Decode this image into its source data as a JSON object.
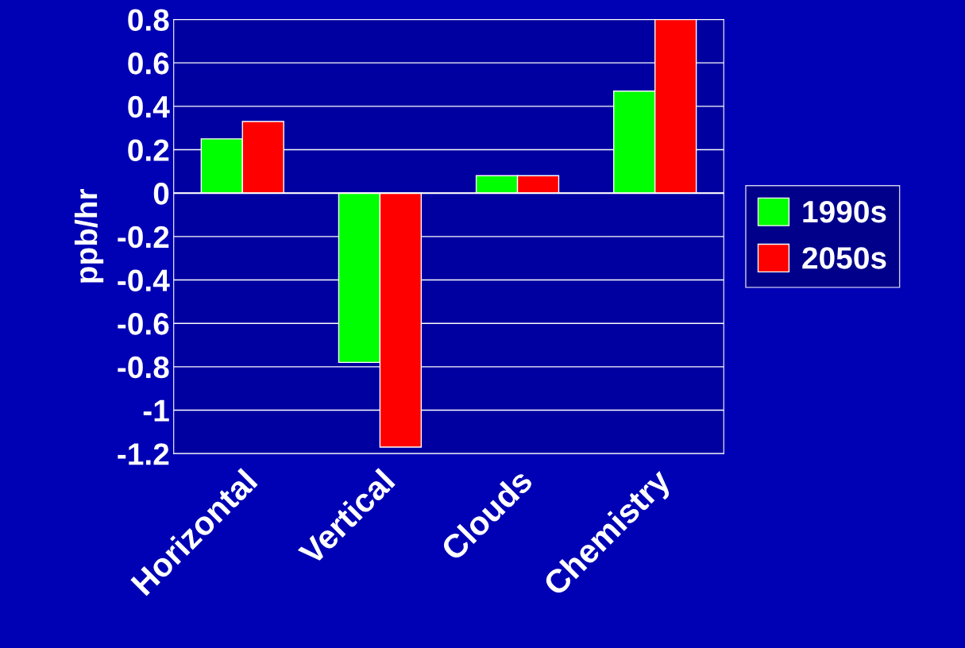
{
  "chart_data": {
    "type": "bar",
    "ylabel": "ppb/hr",
    "categories": [
      "Horizontal",
      "Vertical",
      "Clouds",
      "Chemistry"
    ],
    "series": [
      {
        "name": "1990s",
        "color": "#00ff00",
        "values": [
          0.25,
          -0.78,
          0.08,
          0.47
        ]
      },
      {
        "name": "2050s",
        "color": "#ff0000",
        "values": [
          0.33,
          -1.17,
          0.08,
          0.8
        ]
      }
    ],
    "ylim": [
      -1.2,
      0.8
    ],
    "yticks": [
      -1.2,
      -1,
      -0.8,
      -0.6,
      -0.4,
      -0.2,
      0,
      0.2,
      0.4,
      0.6,
      0.8
    ],
    "grid": "y",
    "legend": "right"
  }
}
